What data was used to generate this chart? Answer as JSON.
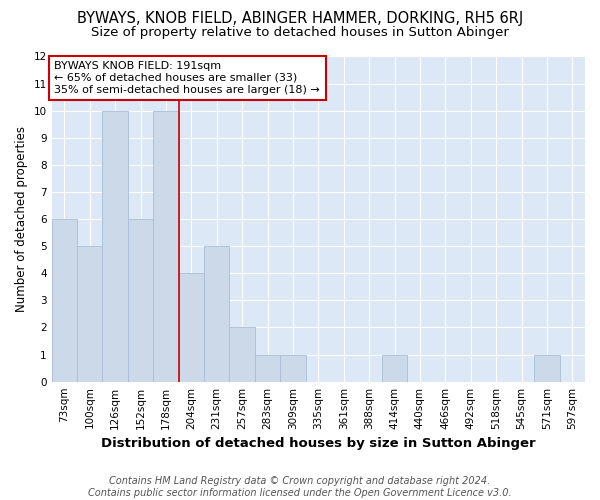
{
  "title": "BYWAYS, KNOB FIELD, ABINGER HAMMER, DORKING, RH5 6RJ",
  "subtitle": "Size of property relative to detached houses in Sutton Abinger",
  "xlabel": "Distribution of detached houses by size in Sutton Abinger",
  "ylabel": "Number of detached properties",
  "categories": [
    "73sqm",
    "100sqm",
    "126sqm",
    "152sqm",
    "178sqm",
    "204sqm",
    "231sqm",
    "257sqm",
    "283sqm",
    "309sqm",
    "335sqm",
    "361sqm",
    "388sqm",
    "414sqm",
    "440sqm",
    "466sqm",
    "492sqm",
    "518sqm",
    "545sqm",
    "571sqm",
    "597sqm"
  ],
  "values": [
    6,
    5,
    10,
    6,
    10,
    4,
    5,
    2,
    1,
    1,
    0,
    0,
    0,
    1,
    0,
    0,
    0,
    0,
    0,
    1,
    0
  ],
  "bar_color": "#ccd9e8",
  "bar_edge_color": "#aabdd4",
  "annotation_box_color": "#ffffff",
  "annotation_border_color": "#cc0000",
  "annotation_line_color": "#cc0000",
  "annotation_text_line1": "BYWAYS KNOB FIELD: 191sqm",
  "annotation_text_line2": "← 65% of detached houses are smaller (33)",
  "annotation_text_line3": "35% of semi-detached houses are larger (18) →",
  "property_bin_index": 4,
  "vline_color": "#cc0000",
  "ylim": [
    0,
    12
  ],
  "yticks": [
    0,
    1,
    2,
    3,
    4,
    5,
    6,
    7,
    8,
    9,
    10,
    11,
    12
  ],
  "background_color": "#dce8f5",
  "grid_color": "#ffffff",
  "footer": "Contains HM Land Registry data © Crown copyright and database right 2024.\nContains public sector information licensed under the Open Government Licence v3.0.",
  "title_fontsize": 10.5,
  "subtitle_fontsize": 9.5,
  "xlabel_fontsize": 9.5,
  "ylabel_fontsize": 8.5,
  "tick_fontsize": 7.5,
  "annotation_fontsize": 8,
  "footer_fontsize": 7
}
